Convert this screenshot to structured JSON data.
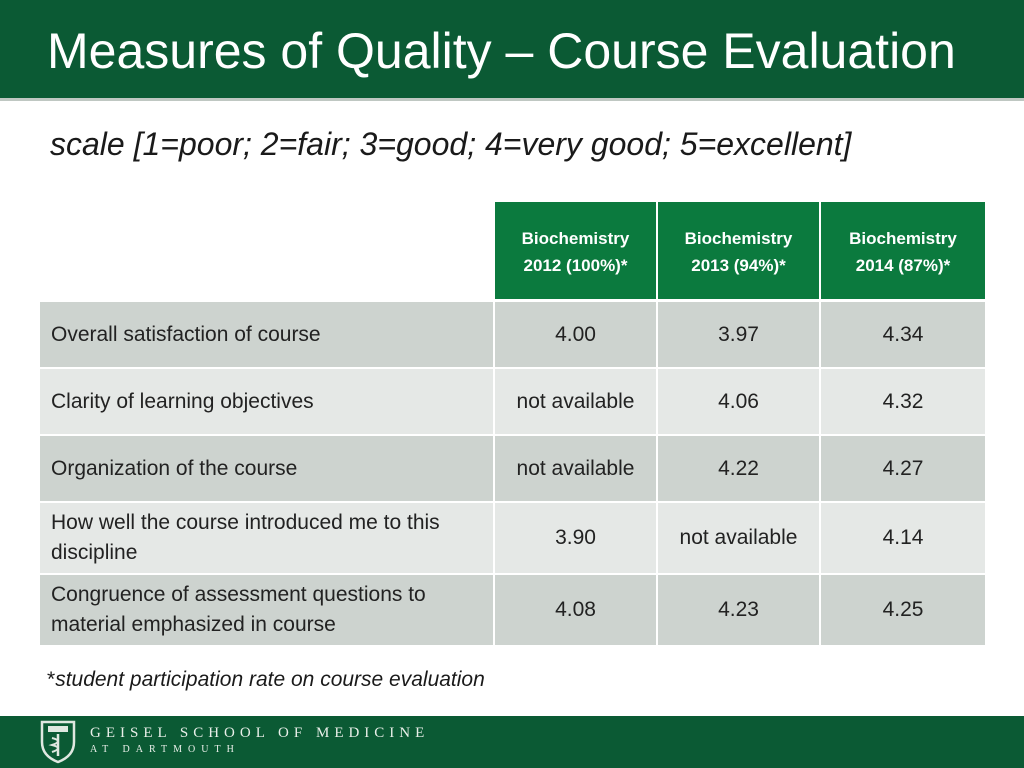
{
  "slide": {
    "title": "Measures of Quality – Course Evaluation",
    "subtitle": "scale [1=poor; 2=fair; 3=good; 4=very good; 5=excellent]"
  },
  "table": {
    "headers": [
      {
        "line1": "Biochemistry",
        "line2": "2012 (100%)*"
      },
      {
        "line1": "Biochemistry",
        "line2": "2013 (94%)*"
      },
      {
        "line1": "Biochemistry",
        "line2": "2014 (87%)*"
      }
    ],
    "rows": [
      {
        "label": "Overall satisfaction of course",
        "values": [
          "4.00",
          "3.97",
          "4.34"
        ]
      },
      {
        "label": "Clarity of learning objectives",
        "values": [
          "not available",
          "4.06",
          "4.32"
        ]
      },
      {
        "label": "Organization of the course",
        "values": [
          "not available",
          "4.22",
          "4.27"
        ]
      },
      {
        "label": "How well the course introduced me to this discipline",
        "values": [
          "3.90",
          "not available",
          "4.14"
        ]
      },
      {
        "label": "Congruence of assessment questions to material emphasized in course",
        "values": [
          "4.08",
          "4.23",
          "4.25"
        ]
      }
    ]
  },
  "footnote": {
    "marker": "*",
    "text": "student participation rate on course evaluation"
  },
  "footer": {
    "school_name": "GEISEL SCHOOL OF MEDICINE",
    "school_sub": "AT DARTMOUTH",
    "logo_icon": "shield-logo-icon"
  },
  "colors": {
    "title_bar": "#0b5a34",
    "header_cell": "#0b7a3e",
    "row_dark": "#cdd3cf",
    "row_light": "#e5e8e6"
  }
}
